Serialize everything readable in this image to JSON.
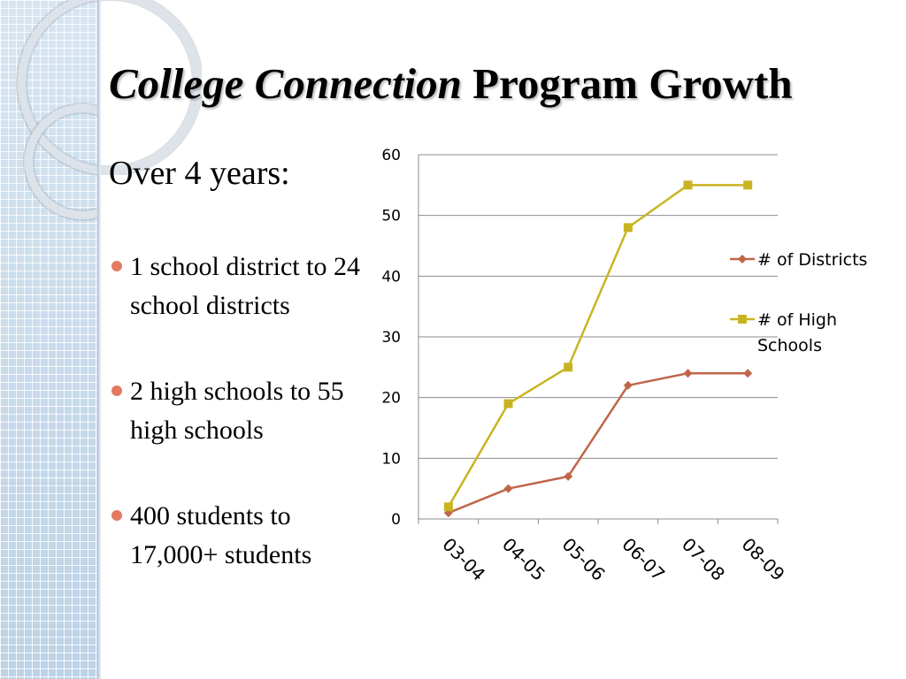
{
  "slide": {
    "title_italic": "College Connection",
    "title_rest": " Program Growth",
    "intro": "Over 4 years:",
    "bullets": [
      " 1 school district to 24 school districts",
      " 2 high schools to 55 high schools",
      " 400 students to 17,000+ students"
    ]
  },
  "colors": {
    "bullet": "#e07b62",
    "districts": "#c0654a",
    "high_schools": "#c8b421",
    "grid": "#8c8c8c"
  },
  "chart_data": {
    "type": "line",
    "title": "",
    "xlabel": "",
    "ylabel": "",
    "categories": [
      "03-04",
      "04-05",
      "05-06",
      "06-07",
      "07-08",
      "08-09"
    ],
    "ylim": [
      0,
      60
    ],
    "yticks": [
      0,
      10,
      20,
      30,
      40,
      50,
      60
    ],
    "grid": true,
    "legend_position": "right",
    "series": [
      {
        "name": "# of Districts",
        "marker": "diamond",
        "color": "#c0654a",
        "values": [
          1,
          5,
          7,
          22,
          24,
          24
        ]
      },
      {
        "name": "# of High Schools",
        "marker": "square",
        "color": "#c8b421",
        "values": [
          2,
          19,
          25,
          48,
          55,
          55
        ]
      }
    ]
  }
}
